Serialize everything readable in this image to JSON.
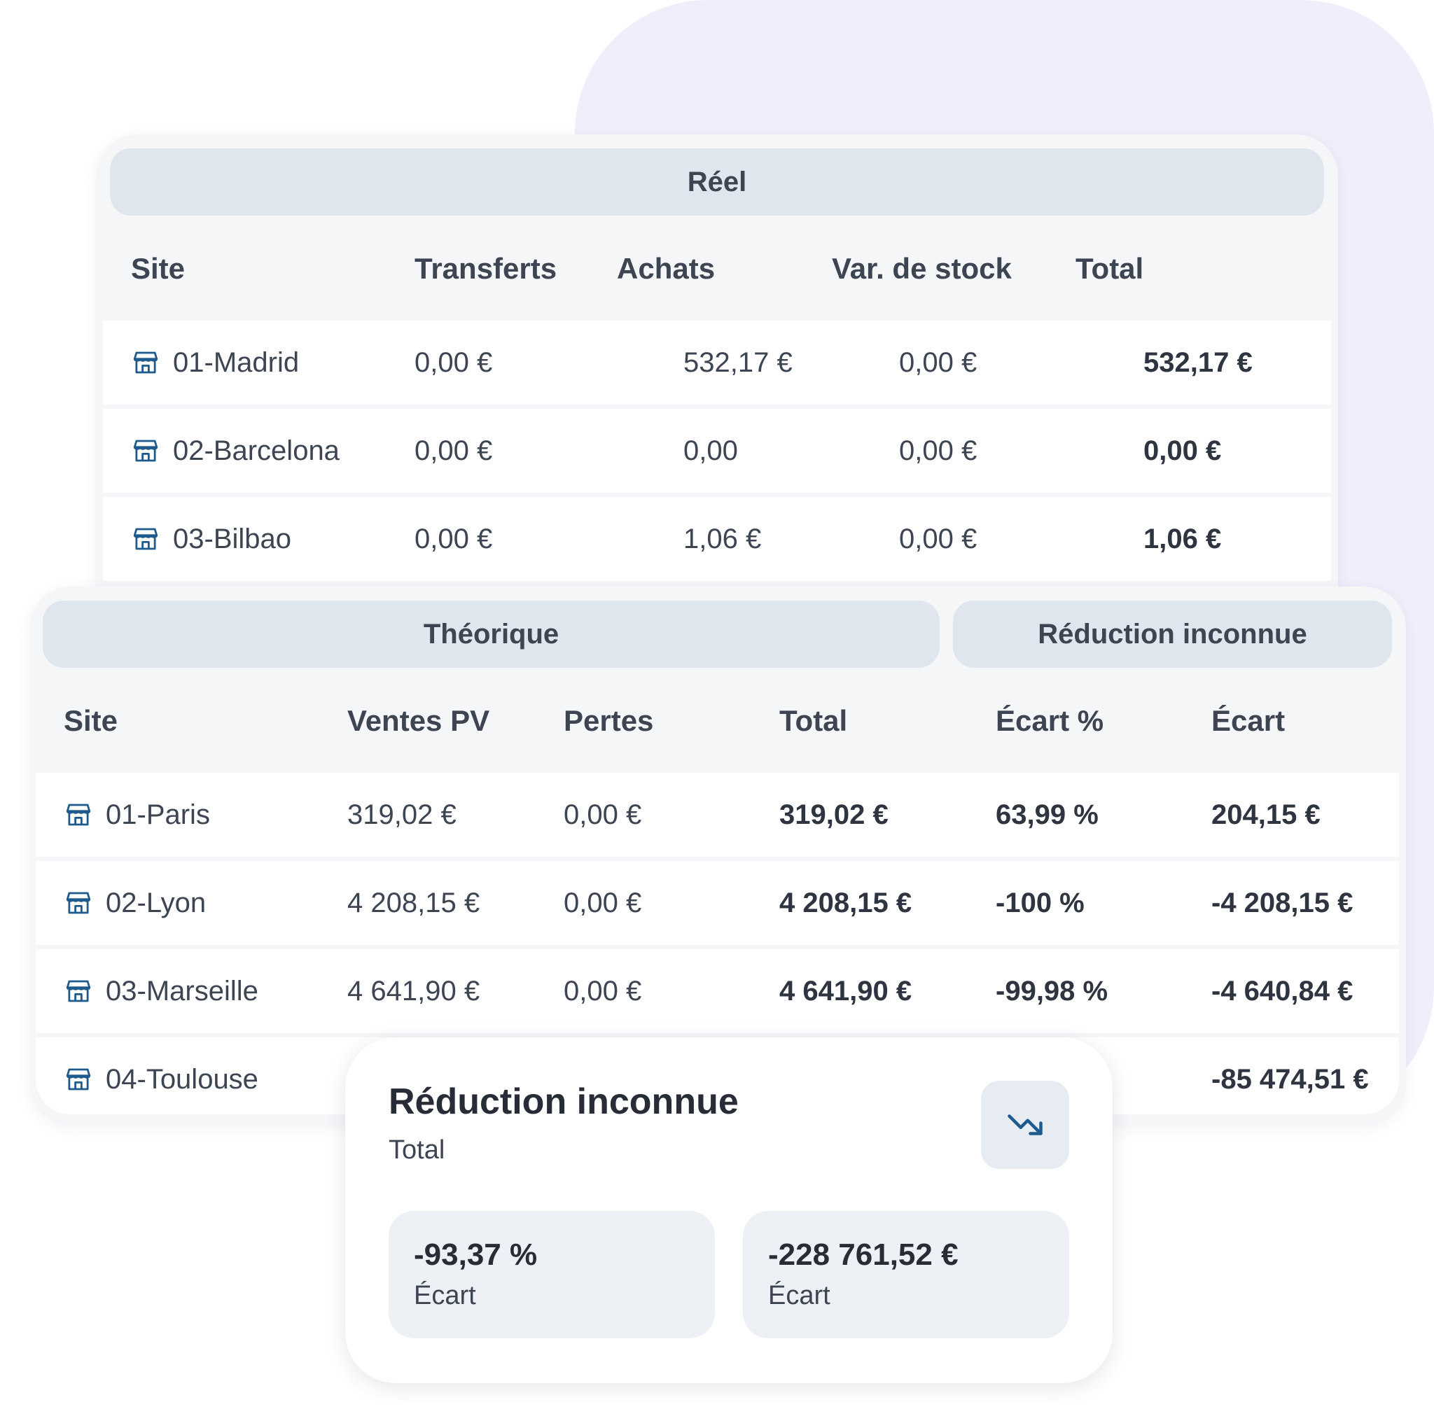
{
  "colors": {
    "background_blob": "#f1eefb",
    "card": "#f5f6f8",
    "header_pill": "#e0e6ee",
    "row": "#ffffff",
    "icon": "#1f5a8c",
    "kpi_box": "#edf1f5"
  },
  "reel": {
    "title": "Réel",
    "columns": [
      "Site",
      "Transferts",
      "Achats",
      "Var. de stock",
      "Total"
    ],
    "rows": [
      {
        "site": "01-Madrid",
        "transferts": "0,00 €",
        "achats": "532,17 €",
        "var_stock": "0,00 €",
        "total": "532,17 €"
      },
      {
        "site": "02-Barcelona",
        "transferts": "0,00 €",
        "achats": "0,00",
        "var_stock": "0,00 €",
        "total": "0,00 €"
      },
      {
        "site": "03-Bilbao",
        "transferts": "0,00 €",
        "achats": "1,06 €",
        "var_stock": "0,00 €",
        "total": "1,06 €"
      }
    ]
  },
  "theorique": {
    "title": "Théorique",
    "reduction_title": "Réduction inconnue",
    "columns": [
      "Site",
      "Ventes PV",
      "Pertes",
      "Total",
      "Écart %",
      "Écart"
    ],
    "rows": [
      {
        "site": "01-Paris",
        "ventes": "319,02 €",
        "pertes": "0,00 €",
        "total": "319,02 €",
        "ecart_pct": "63,99 %",
        "ecart": "204,15 €"
      },
      {
        "site": "02-Lyon",
        "ventes": "4 208,15 €",
        "pertes": "0,00 €",
        "total": "4 208,15 €",
        "ecart_pct": "-100 %",
        "ecart": "-4 208,15 €"
      },
      {
        "site": "03-Marseille",
        "ventes": "4 641,90 €",
        "pertes": "0,00 €",
        "total": "4 641,90 €",
        "ecart_pct": "-99,98 %",
        "ecart": "-4 640,84 €"
      },
      {
        "site": "04-Toulouse",
        "ventes": "",
        "pertes": "",
        "total": "",
        "ecart_pct": "",
        "ecart": "-85 474,51 €"
      }
    ]
  },
  "kpi": {
    "title": "Réduction inconnue",
    "subtitle": "Total",
    "icon": "trending-down-icon",
    "boxes": [
      {
        "value": "-93,37 %",
        "label": "Écart"
      },
      {
        "value": "-228 761,52 €",
        "label": "Écart"
      }
    ]
  }
}
